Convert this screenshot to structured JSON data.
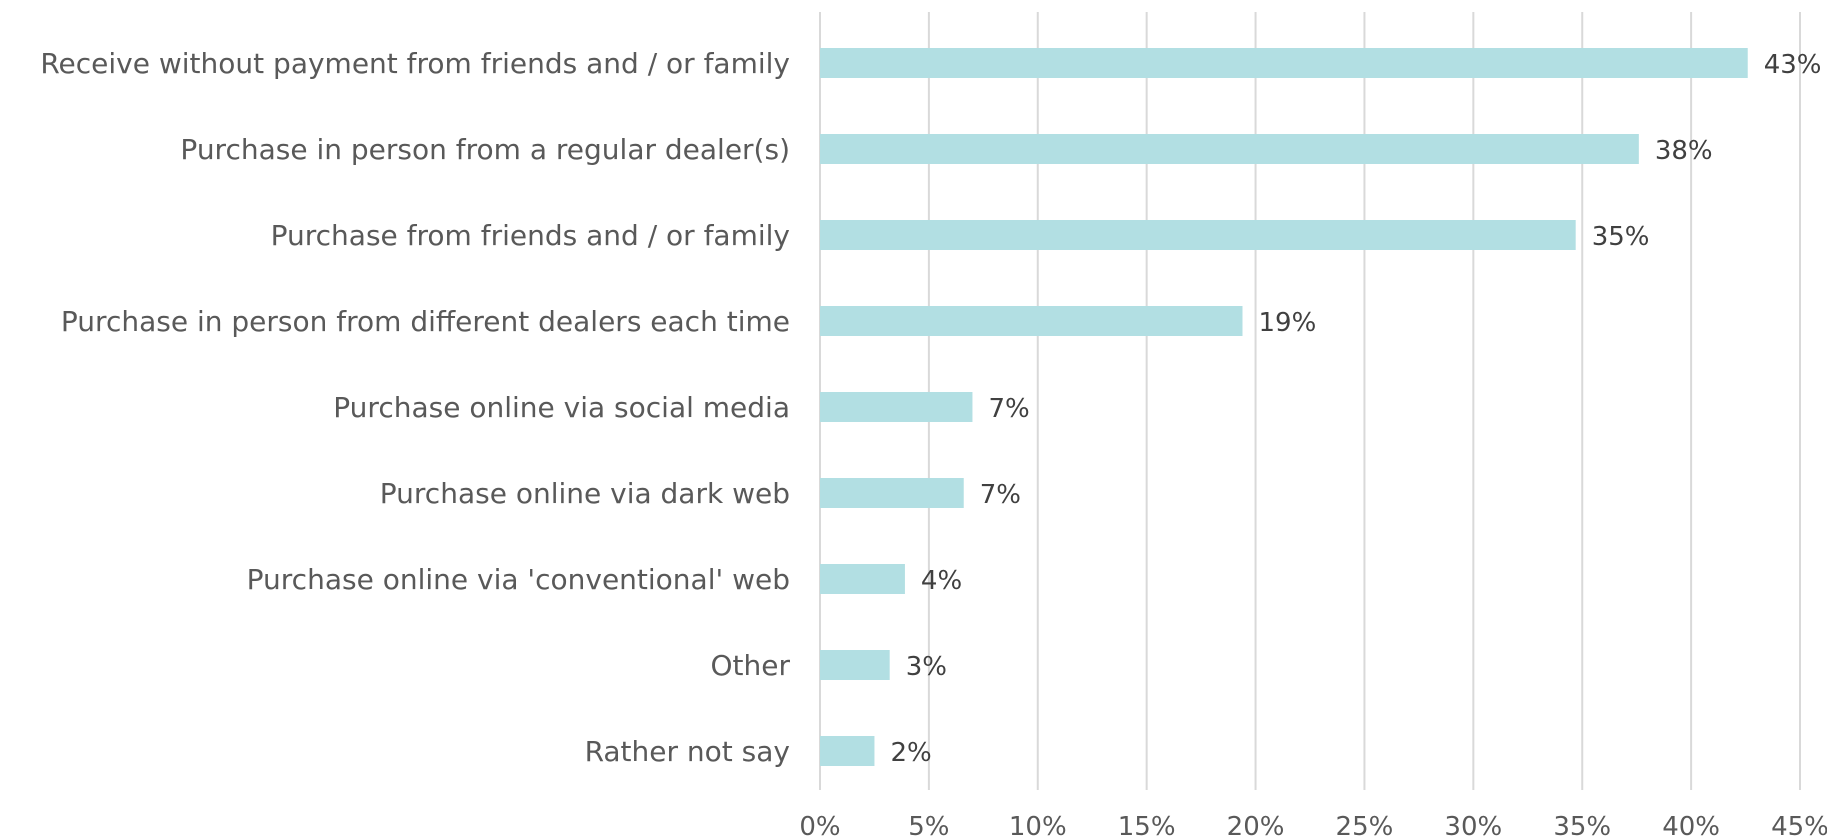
{
  "chart_data": {
    "type": "bar",
    "orientation": "horizontal",
    "categories": [
      "Receive without payment from friends and / or family",
      "Purchase in person from a regular dealer(s)",
      "Purchase from friends and / or family",
      "Purchase in person from different dealers each time",
      "Purchase online via social media",
      "Purchase online via dark web",
      "Purchase online via 'conventional' web",
      "Other",
      "Rather not say"
    ],
    "values": [
      42.6,
      37.6,
      34.7,
      19.4,
      7.0,
      6.6,
      3.9,
      3.2,
      2.5
    ],
    "value_labels": [
      "43%",
      "38%",
      "35%",
      "19%",
      "7%",
      "7%",
      "4%",
      "3%",
      "2%"
    ],
    "xlim": [
      0,
      45
    ],
    "x_ticks": [
      0,
      5,
      10,
      15,
      20,
      25,
      30,
      35,
      40,
      45
    ],
    "x_tick_labels": [
      "0%",
      "5%",
      "10%",
      "15%",
      "20%",
      "25%",
      "30%",
      "35%",
      "40%",
      "45%"
    ],
    "title": "",
    "xlabel": "",
    "ylabel": "",
    "grid": "vertical",
    "legend": "none",
    "bar_color": "#b2dfe3"
  }
}
